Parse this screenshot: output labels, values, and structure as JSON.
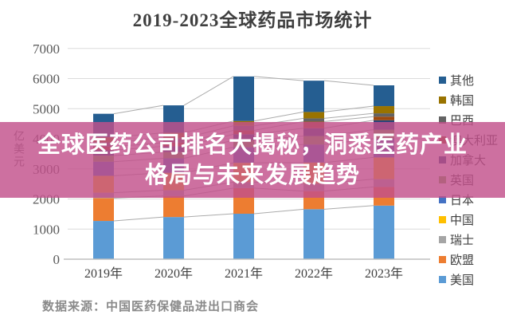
{
  "overlay": {
    "line1": "全球医药公司排名大揭秘，洞悉医药产业",
    "line2": "格局与未来发展趋势",
    "bg_color": "#C2508B",
    "text_color": "#FFFFFF"
  },
  "source": {
    "text": "数据来源：中国医药保健品进出口商会"
  },
  "chart_data": {
    "type": "bar",
    "stacked": true,
    "title": "2019-2023全球药品市场统计",
    "xlabel": "",
    "ylabel": "亿美元",
    "ylim": [
      0,
      7000
    ],
    "ytick_interval": 1000,
    "grid": true,
    "series_lines": true,
    "legend_position": "right",
    "legend_order_top_to_bottom": [
      "其他",
      "韩国",
      "巴西",
      "澳大利亚",
      "加拿大",
      "英国",
      "日本",
      "中国",
      "瑞士",
      "欧盟",
      "美国"
    ],
    "categories": [
      "2019年",
      "2020年",
      "2021年",
      "2022年",
      "2023年"
    ],
    "series": [
      {
        "name": "美国",
        "color": "#5B9BD5",
        "values": [
          1270,
          1400,
          1510,
          1660,
          1780
        ]
      },
      {
        "name": "欧盟",
        "color": "#ED7D31",
        "values": [
          760,
          700,
          850,
          600,
          620
        ]
      },
      {
        "name": "瑞士",
        "color": "#A5A5A5",
        "values": [
          180,
          190,
          200,
          250,
          260
        ]
      },
      {
        "name": "中国",
        "color": "#FFC000",
        "values": [
          560,
          580,
          640,
          700,
          720
        ]
      },
      {
        "name": "日本",
        "color": "#4472C4",
        "values": [
          470,
          480,
          520,
          600,
          620
        ]
      },
      {
        "name": "英国",
        "color": "#70AD47",
        "values": [
          200,
          210,
          230,
          280,
          300
        ]
      },
      {
        "name": "加拿大",
        "color": "#264478",
        "values": [
          180,
          190,
          200,
          260,
          315
        ]
      },
      {
        "name": "澳大利亚",
        "color": "#9E480E",
        "values": [
          120,
          120,
          130,
          222,
          120
        ]
      },
      {
        "name": "巴西",
        "color": "#636363",
        "values": [
          140,
          150,
          150,
          106,
          110
        ]
      },
      {
        "name": "韩国",
        "color": "#997300",
        "values": [
          170,
          180,
          160,
          212,
          240
        ]
      },
      {
        "name": "其他",
        "color": "#255E91",
        "values": [
          780,
          910,
          1480,
          1040,
          690
        ]
      }
    ],
    "totals_estimated": [
      4830,
      5110,
      6070,
      5930,
      5775
    ]
  }
}
